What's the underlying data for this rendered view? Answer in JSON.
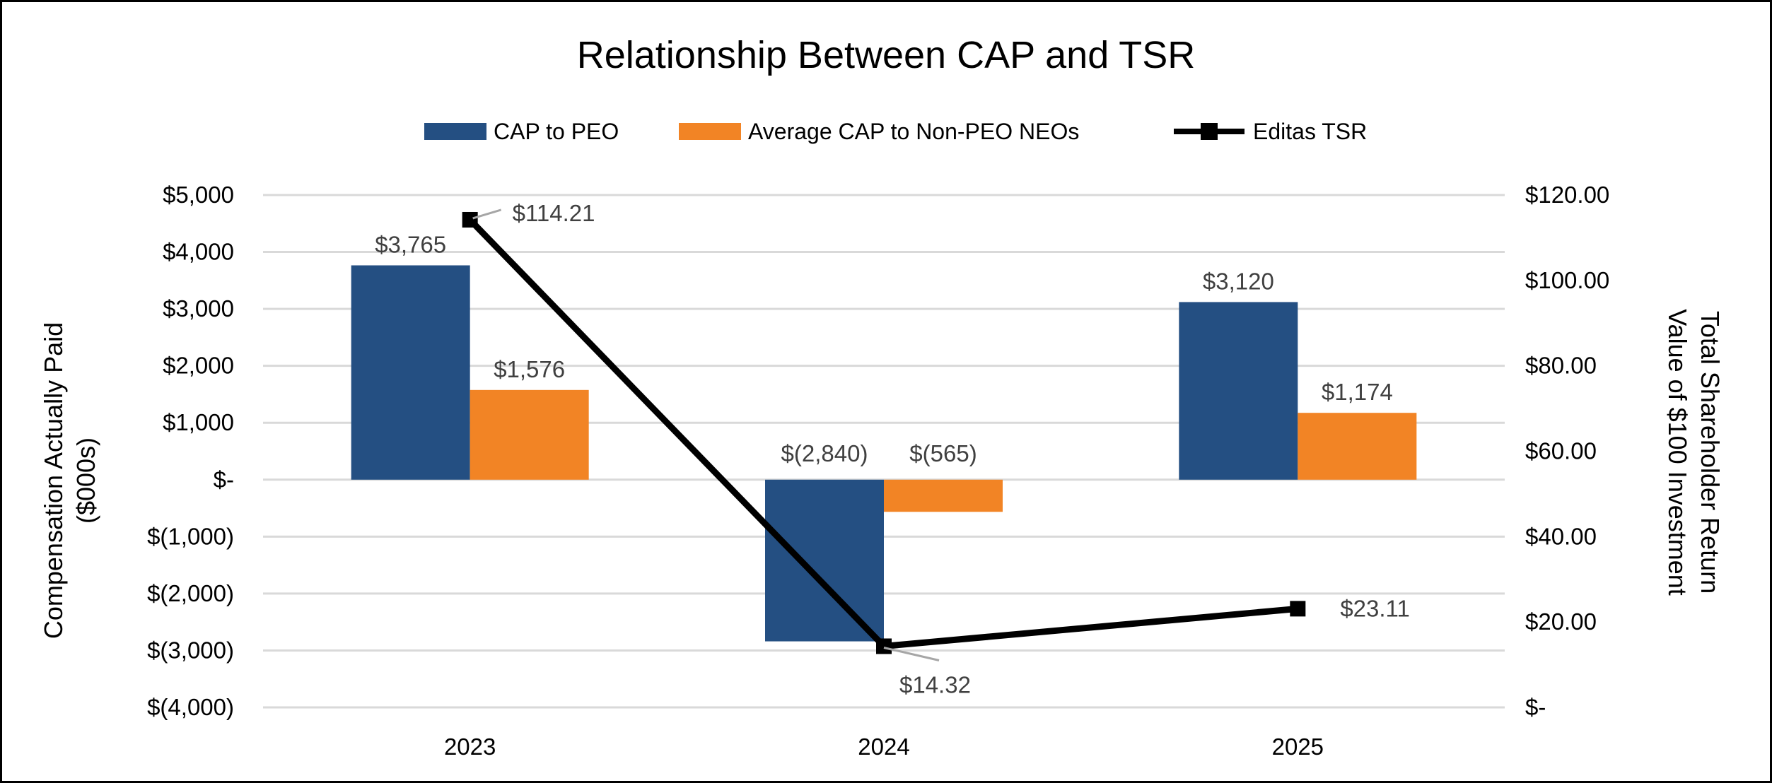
{
  "chart_data": {
    "type": "bar+line",
    "title": "Relationship Between CAP and TSR",
    "categories": [
      "2023",
      "2024",
      "2025"
    ],
    "series": [
      {
        "name": "CAP to PEO",
        "type": "bar",
        "axis": "left",
        "color": "#244F82",
        "values": [
          3765,
          -2840,
          3120
        ],
        "labels": [
          "$3,765",
          "$(2,840)",
          "$3,120"
        ]
      },
      {
        "name": "Average CAP to Non-PEO NEOs",
        "type": "bar",
        "axis": "left",
        "color": "#F28425",
        "values": [
          1576,
          -565,
          1174
        ],
        "labels": [
          "$1,576",
          "$(565)",
          "$1,174"
        ]
      },
      {
        "name": "Editas TSR",
        "type": "line",
        "axis": "right",
        "color": "#000000",
        "marker": "square",
        "values": [
          114.21,
          14.32,
          23.11
        ],
        "labels": [
          "$114.21",
          "$14.32",
          "$23.11"
        ]
      }
    ],
    "ylabel": "Compensation Actually Paid ($000s)",
    "ylabel_lines": [
      "Compensation Actually Paid",
      "($000s)"
    ],
    "y2label_lines": [
      "Total Shareholder Return",
      "Value of $100 Investment"
    ],
    "ylim": [
      -4000,
      5000
    ],
    "y2lim": [
      0,
      120
    ],
    "yticks": [
      5000,
      4000,
      3000,
      2000,
      1000,
      0,
      -1000,
      -2000,
      -3000,
      -4000
    ],
    "ytick_labels": [
      "$5,000",
      "$4,000",
      "$3,000",
      "$2,000",
      "$1,000",
      "$-",
      "$(1,000)",
      "$(2,000)",
      "$(3,000)",
      "$(4,000)"
    ],
    "y2ticks": [
      120,
      100,
      80,
      60,
      40,
      20,
      0
    ],
    "y2tick_labels": [
      "$120.00",
      "$100.00",
      "$80.00",
      "$60.00",
      "$40.00",
      "$20.00",
      "$-"
    ],
    "grid": true,
    "legend": "top"
  }
}
